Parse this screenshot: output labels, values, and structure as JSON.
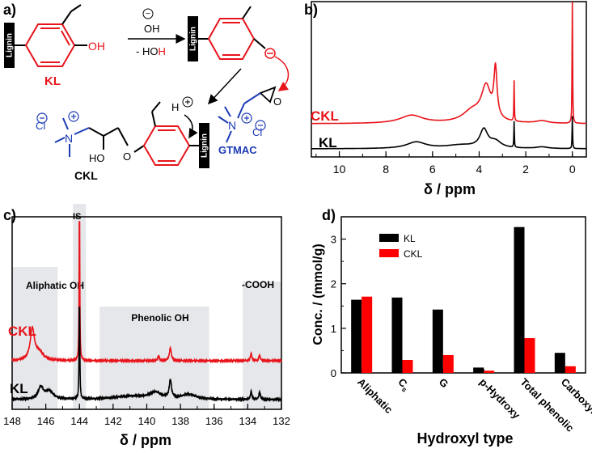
{
  "panels": {
    "a": {
      "label": "a)",
      "texts": {
        "lignin": "Lignin",
        "oh_ion": "OH",
        "minus_sign": "−",
        "hoh_pre": "- HO",
        "hoh_h": "H",
        "kl": "KL",
        "h_plus": "H",
        "gtmac": "GTMAC",
        "ckl": "CKL",
        "cl": "Cl",
        "n": "N",
        "ho": "HO",
        "oh_group": "OH",
        "o_ether": "O",
        "o_epox": "O"
      },
      "colors": {
        "red": "#e8141b",
        "blue": "#1b3bb5",
        "black": "#000000"
      }
    },
    "b": {
      "label": "b)",
      "xlabel": "δ / ppm",
      "ticks": [
        "10",
        "8",
        "6",
        "4",
        "2",
        "0"
      ],
      "legend": {
        "ckl": "CKL",
        "kl": "KL"
      }
    },
    "c": {
      "label": "c)",
      "xlabel": "δ / ppm",
      "ticks": [
        "148",
        "146",
        "144",
        "142",
        "140",
        "138",
        "136",
        "134",
        "132"
      ],
      "regions": [
        "Aliphatic OH",
        "Phenolic OH",
        "-COOH"
      ],
      "is_label": "IS",
      "legend": {
        "ckl": "CKL",
        "kl": "KL"
      }
    },
    "d": {
      "label": "d)",
      "xlabel": "Hydroxyl type",
      "ylabel": "Conc. / (mmol/g)",
      "yticks": [
        "0",
        "1",
        "2",
        "3"
      ],
      "legend": [
        {
          "name": "KL",
          "color": "#000000"
        },
        {
          "name": "CKL",
          "color": "#ff0000"
        }
      ]
    }
  },
  "chart_data": [
    {
      "type": "line",
      "panel": "b",
      "xlabel": "δ / ppm",
      "xlim": [
        11.2,
        -0.6
      ],
      "series": [
        {
          "name": "CKL",
          "color": "#e8141b",
          "peaks_ppm": [
            6.9,
            3.7,
            3.3,
            2.5,
            0.0
          ]
        },
        {
          "name": "KL",
          "color": "#000000",
          "peaks_ppm": [
            6.7,
            3.8,
            2.5,
            0.0
          ]
        }
      ]
    },
    {
      "type": "line",
      "panel": "c",
      "xlabel": "δ / ppm",
      "xlim": [
        148,
        132
      ],
      "regions": [
        {
          "name": "Aliphatic OH",
          "from": 148,
          "to": 145.3
        },
        {
          "name": "Phenolic OH",
          "from": 142.8,
          "to": 136.3
        },
        {
          "name": "-COOH",
          "from": 134.3,
          "to": 132.0
        }
      ],
      "internal_standard_ppm": 144.0,
      "series": [
        {
          "name": "CKL",
          "color": "#e8141b",
          "peaks_ppm": [
            146.8,
            144.0,
            138.6,
            133.8
          ]
        },
        {
          "name": "KL",
          "color": "#000000",
          "peaks_ppm": [
            146.3,
            144.0,
            138.6,
            133.8
          ]
        }
      ]
    },
    {
      "type": "bar",
      "panel": "d",
      "xlabel": "Hydroxyl type",
      "ylabel": "Conc. / (mmol/g)",
      "ylim": [
        0,
        3.5
      ],
      "categories": [
        "Aliphatic",
        "Cs",
        "G",
        "p-Hydroxy",
        "Total phenolic",
        "Carboxylic"
      ],
      "category_labels": [
        {
          "main": "Aliphatic",
          "sub": ""
        },
        {
          "main": "C",
          "sub": "s"
        },
        {
          "main": "G",
          "sub": ""
        },
        {
          "main": "p-Hydroxy",
          "sub": ""
        },
        {
          "main": "Total phenolic",
          "sub": ""
        },
        {
          "main": "Carboxylic",
          "sub": ""
        }
      ],
      "series": [
        {
          "name": "KL",
          "color": "#000000",
          "values": [
            1.64,
            1.69,
            1.42,
            0.12,
            3.27,
            0.45
          ]
        },
        {
          "name": "CKL",
          "color": "#ff0000",
          "values": [
            1.71,
            0.29,
            0.4,
            0.05,
            0.78,
            0.15
          ]
        }
      ]
    }
  ]
}
